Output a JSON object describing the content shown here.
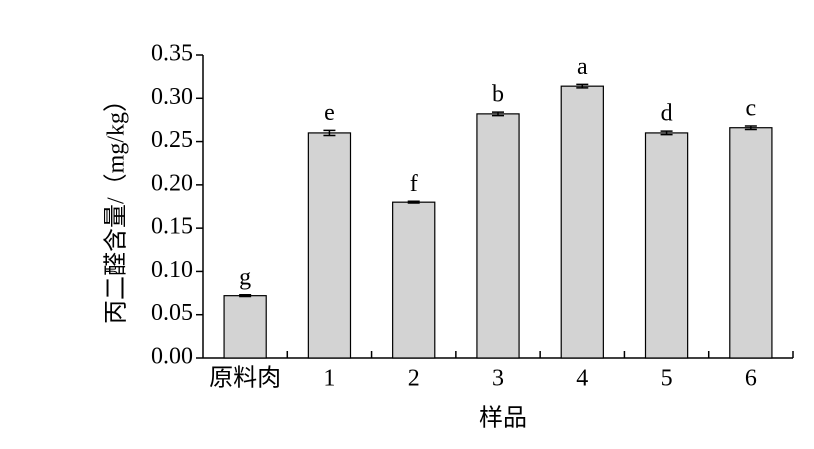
{
  "chart_data": {
    "type": "bar",
    "x_label": "样品",
    "y_label": "丙二醛含量/（mg/kg）",
    "categories": [
      "原料肉",
      "1",
      "2",
      "3",
      "4",
      "5",
      "6"
    ],
    "values": [
      0.072,
      0.26,
      0.18,
      0.282,
      0.314,
      0.26,
      0.266
    ],
    "errors": [
      0.001,
      0.003,
      0.001,
      0.002,
      0.002,
      0.002,
      0.002
    ],
    "labels": [
      "g",
      "e",
      "f",
      "b",
      "a",
      "d",
      "c"
    ],
    "color": "#d3d3d3",
    "ylim": [
      0,
      0.35
    ],
    "yticks": [
      {
        "value": 0,
        "label": "0.00"
      },
      {
        "value": 0.05,
        "label": "0.05"
      },
      {
        "value": 0.1,
        "label": "0.10"
      },
      {
        "value": 0.15,
        "label": "0.15"
      },
      {
        "value": 0.2,
        "label": "0.20"
      },
      {
        "value": 0.25,
        "label": "0.25"
      },
      {
        "value": 0.3,
        "label": "0.30"
      },
      {
        "value": 0.35,
        "label": "0.35"
      }
    ]
  }
}
